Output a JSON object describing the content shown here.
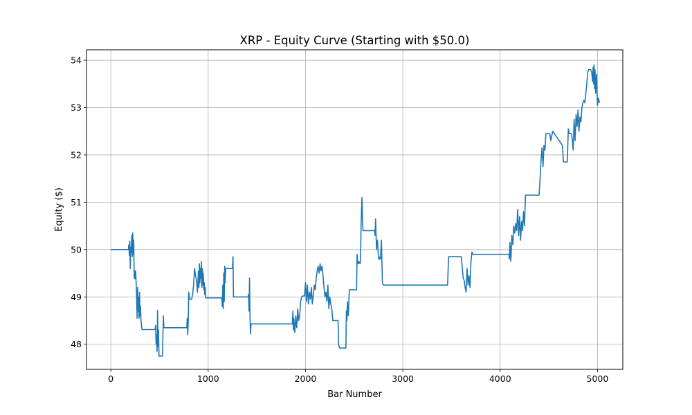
{
  "chart_data": {
    "type": "line",
    "title": "XRP - Equity Curve (Starting with $50.0)",
    "xlabel": "Bar Number",
    "ylabel": "Equity ($)",
    "xlim": [
      -250,
      5260
    ],
    "ylim": [
      47.47,
      54.22
    ],
    "grid": true,
    "xticks": [
      0,
      1000,
      2000,
      3000,
      4000,
      5000
    ],
    "yticks": [
      48,
      49,
      50,
      51,
      52,
      53,
      54
    ],
    "series": [
      {
        "color": "#1f77b4",
        "x": [
          0,
          180,
          185,
          190,
          195,
          200,
          205,
          210,
          215,
          220,
          225,
          230,
          235,
          240,
          245,
          250,
          255,
          260,
          265,
          270,
          275,
          280,
          285,
          290,
          295,
          300,
          305,
          310,
          315,
          320,
          330,
          340,
          350,
          360,
          455,
          460,
          465,
          470,
          475,
          480,
          485,
          490,
          495,
          500,
          510,
          520,
          530,
          540,
          545,
          550,
          780,
          785,
          790,
          795,
          800,
          810,
          820,
          830,
          840,
          850,
          860,
          870,
          880,
          890,
          900,
          905,
          910,
          915,
          920,
          925,
          930,
          935,
          940,
          945,
          950,
          955,
          960,
          965,
          970,
          975,
          980,
          985,
          990,
          1000,
          1140,
          1145,
          1150,
          1155,
          1160,
          1165,
          1170,
          1175,
          1180,
          1190,
          1250,
          1255,
          1260,
          1265,
          1270,
          1275,
          1280,
          1290,
          1410,
          1415,
          1420,
          1425,
          1430,
          1435,
          1440,
          1860,
          1865,
          1870,
          1875,
          1880,
          1890,
          1900,
          1910,
          1920,
          1930,
          1940,
          1950,
          1960,
          1970,
          1980,
          1990,
          2000,
          2010,
          2020,
          2030,
          2040,
          2050,
          2060,
          2070,
          2080,
          2090,
          2100,
          2110,
          2120,
          2130,
          2140,
          2150,
          2160,
          2170,
          2180,
          2190,
          2200,
          2210,
          2220,
          2230,
          2240,
          2250,
          2260,
          2270,
          2280,
          2290,
          2300,
          2330,
          2335,
          2340,
          2350,
          2410,
          2415,
          2420,
          2425,
          2430,
          2440,
          2450,
          2460,
          2520,
          2525,
          2530,
          2535,
          2540,
          2550,
          2560,
          2565,
          2570,
          2575,
          2580,
          2590,
          2600,
          2700,
          2705,
          2710,
          2715,
          2720,
          2730,
          2740,
          2750,
          2760,
          2765,
          2770,
          2775,
          2780,
          2790,
          2800,
          3450,
          3455,
          3460,
          3470,
          3580,
          3585,
          3590,
          3600,
          3620,
          3630,
          3640,
          3650,
          3660,
          3670,
          3680,
          3690,
          3700,
          3710,
          3720,
          4080,
          4085,
          4090,
          4095,
          4100,
          4110,
          4120,
          4130,
          4140,
          4150,
          4160,
          4170,
          4180,
          4190,
          4200,
          4210,
          4220,
          4230,
          4240,
          4250,
          4260,
          4270,
          4380,
          4385,
          4390,
          4395,
          4400,
          4410,
          4420,
          4430,
          4440,
          4450,
          4460,
          4470,
          4480,
          4490,
          4500,
          4510,
          4520,
          4540,
          4640,
          4650,
          4660,
          4670,
          4680,
          4690,
          4700,
          4710,
          4720,
          4730,
          4740,
          4750,
          4760,
          4770,
          4780,
          4790,
          4800,
          4810,
          4820,
          4830,
          4840,
          4850,
          4860,
          4870,
          4880,
          4890,
          4900,
          4910,
          4920,
          4930,
          4940,
          4950,
          4955,
          4960,
          4965,
          4970,
          4975,
          4980,
          4990,
          5000,
          5010,
          5020
        ],
        "values": [
          50.0,
          50.0,
          50.1,
          49.88,
          50.18,
          49.6,
          50.05,
          49.95,
          50.3,
          49.85,
          50.35,
          49.9,
          50.2,
          49.4,
          49.55,
          49.38,
          49.55,
          49.3,
          49.0,
          48.55,
          49.2,
          48.7,
          49.0,
          48.55,
          49.1,
          48.6,
          48.8,
          48.5,
          48.4,
          48.31,
          48.31,
          48.31,
          48.31,
          48.31,
          48.31,
          48.4,
          48.0,
          48.2,
          47.85,
          48.72,
          47.95,
          48.3,
          47.75,
          47.75,
          47.75,
          47.75,
          47.75,
          48.6,
          48.35,
          48.35,
          48.35,
          48.55,
          48.2,
          48.45,
          49.1,
          48.95,
          48.95,
          48.95,
          49.05,
          49.25,
          49.6,
          49.45,
          49.35,
          49.1,
          49.55,
          49.2,
          49.7,
          49.3,
          49.6,
          49.4,
          49.75,
          49.2,
          49.6,
          49.25,
          49.5,
          49.15,
          49.3,
          49.05,
          49.2,
          48.98,
          48.98,
          48.98,
          48.98,
          48.98,
          48.98,
          48.8,
          49.25,
          48.75,
          49.5,
          48.9,
          49.65,
          49.3,
          49.6,
          49.6,
          49.6,
          49.85,
          49.0,
          49.0,
          49.0,
          49.0,
          49.0,
          49.0,
          49.0,
          49.05,
          48.7,
          49.4,
          48.55,
          48.22,
          48.43,
          48.43,
          48.43,
          48.7,
          48.3,
          48.55,
          48.25,
          48.6,
          48.35,
          48.75,
          48.5,
          48.6,
          48.9,
          49.0,
          49.02,
          49.02,
          49.02,
          49.3,
          48.9,
          49.25,
          48.85,
          49.1,
          48.95,
          49.2,
          48.85,
          49.05,
          49.25,
          49.15,
          49.4,
          49.55,
          49.65,
          49.5,
          49.7,
          49.55,
          49.65,
          49.45,
          49.2,
          49.0,
          49.1,
          48.9,
          49.25,
          48.75,
          49.0,
          48.85,
          48.75,
          48.5,
          48.5,
          48.5,
          48.5,
          48.5,
          48.0,
          47.92,
          47.92,
          47.92,
          48.7,
          48.5,
          48.9,
          48.6,
          49.15,
          49.15,
          49.15,
          49.15,
          49.9,
          49.75,
          49.7,
          49.75,
          49.7,
          49.75,
          50.4,
          50.8,
          51.1,
          50.4,
          50.4,
          50.4,
          50.4,
          50.4,
          50.3,
          50.65,
          50.0,
          50.2,
          49.8,
          49.8,
          49.85,
          49.8,
          50.0,
          50.2,
          49.3,
          49.25,
          49.25,
          49.25,
          49.25,
          49.85,
          49.85,
          49.85,
          49.85,
          49.85,
          49.4,
          49.35,
          49.2,
          49.1,
          49.6,
          49.25,
          49.45,
          49.2,
          49.75,
          49.95,
          49.9,
          49.9,
          49.9,
          49.9,
          49.8,
          50.15,
          49.75,
          50.3,
          50.1,
          50.5,
          50.35,
          50.55,
          50.4,
          50.85,
          50.3,
          50.7,
          50.2,
          50.6,
          50.4,
          50.8,
          50.5,
          51.15,
          51.15,
          51.15,
          51.15,
          51.15,
          51.15,
          51.15,
          51.5,
          51.9,
          52.15,
          51.75,
          52.2,
          52.1,
          52.45,
          52.45,
          52.45,
          52.45,
          52.45,
          52.3,
          52.5,
          52.2,
          51.85,
          51.85,
          51.85,
          51.85,
          51.85,
          52.55,
          52.45,
          52.45,
          52.45,
          52.35,
          52.1,
          52.75,
          52.3,
          52.85,
          52.6,
          52.95,
          52.5,
          52.8,
          52.7,
          53.0,
          53.1,
          53.15,
          53.1,
          53.3,
          53.5,
          53.75,
          53.8,
          53.8,
          53.8,
          53.75,
          53.55,
          53.85,
          53.5,
          53.9,
          53.4,
          53.8,
          53.3,
          53.7,
          53.05,
          53.2,
          53.1
        ]
      }
    ]
  }
}
